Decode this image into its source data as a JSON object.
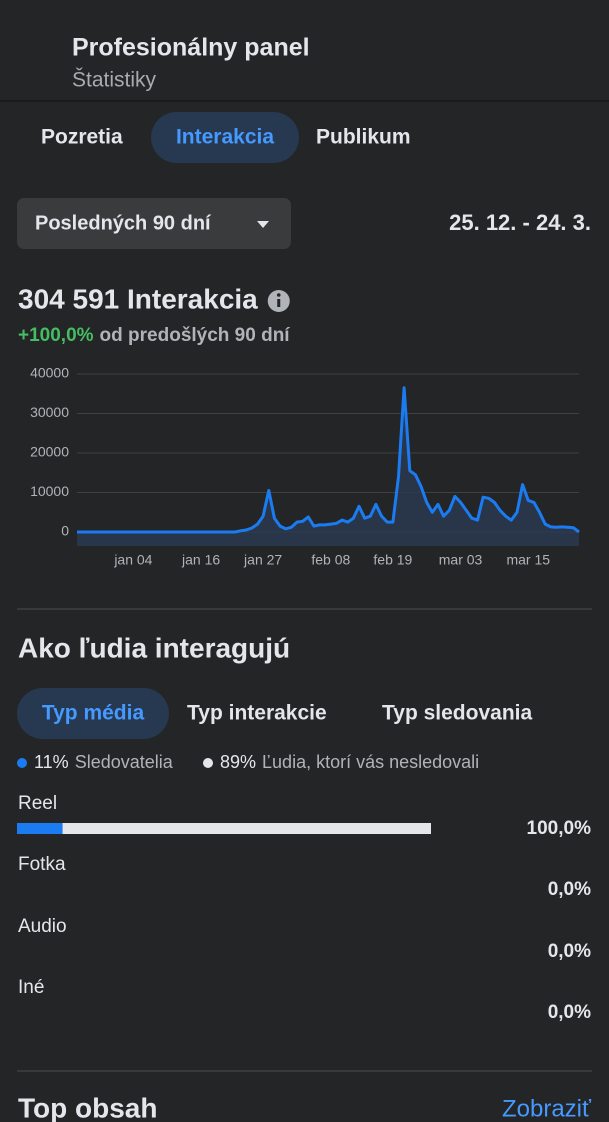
{
  "header": {
    "title": "Profesionálny panel",
    "subtitle": "Štatistiky"
  },
  "tabs": [
    "Pozretia",
    "Interakcia",
    "Publikum"
  ],
  "period": {
    "selector": "Posledných 90 dní",
    "range": "25. 12. - 24. 3."
  },
  "summary": {
    "total": "304 591 Interakcia",
    "change": "+100,0%",
    "change_note": "od predošlých 90 dní"
  },
  "chart_data": {
    "type": "line",
    "color": "#1b7cf2",
    "grid": true,
    "categories": [
      null,
      null,
      null,
      null,
      null,
      null,
      null,
      null,
      null,
      null,
      "jan 04",
      null,
      null,
      null,
      null,
      null,
      null,
      null,
      null,
      null,
      null,
      null,
      "jan 16",
      null,
      null,
      null,
      null,
      null,
      null,
      null,
      null,
      null,
      null,
      "jan 27",
      null,
      null,
      null,
      null,
      null,
      null,
      null,
      null,
      null,
      null,
      null,
      "feb 08",
      null,
      null,
      null,
      null,
      null,
      null,
      null,
      null,
      null,
      null,
      "feb 19",
      null,
      null,
      null,
      null,
      null,
      null,
      null,
      null,
      null,
      null,
      null,
      "mar 03",
      null,
      null,
      null,
      null,
      null,
      null,
      null,
      null,
      null,
      null,
      null,
      "mar 15",
      null,
      null,
      null,
      null,
      null,
      null,
      null,
      null,
      null
    ],
    "values": [
      0,
      0,
      0,
      0,
      0,
      0,
      0,
      0,
      0,
      0,
      0,
      0,
      0,
      0,
      0,
      0,
      0,
      0,
      0,
      0,
      0,
      0,
      0,
      0,
      0,
      0,
      0,
      0,
      0,
      300,
      500,
      1000,
      2000,
      4000,
      10500,
      3500,
      1500,
      800,
      1200,
      2500,
      2700,
      3800,
      1500,
      1800,
      1800,
      2000,
      2200,
      3000,
      2500,
      3500,
      6500,
      3500,
      4000,
      7000,
      4000,
      2500,
      2500,
      14000,
      36500,
      15500,
      14500,
      11500,
      7500,
      5000,
      7000,
      4000,
      5500,
      9000,
      7500,
      5500,
      3500,
      3000,
      8800,
      8500,
      7500,
      5500,
      4000,
      3000,
      5000,
      12000,
      8000,
      7500,
      5000,
      2000,
      1300,
      1200,
      1300,
      1200,
      1100,
      0
    ],
    "ylim": [
      0,
      40000
    ],
    "yticks": [
      0,
      10000,
      20000,
      30000,
      40000
    ]
  },
  "section": {
    "title": "Ako ľudia interagujú",
    "tabs": [
      "Typ média",
      "Typ interakcie",
      "Typ sledovania"
    ]
  },
  "breakdown": {
    "series": [
      {
        "name": "Sledovatelia",
        "color": "#1b7cf2",
        "value": 11,
        "value_label": "11%"
      },
      {
        "name": "Ľudia, ktorí vás nesledovali",
        "color": "#e4e6eb",
        "value": 89,
        "value_label": "89%"
      }
    ],
    "rows": [
      {
        "label": "Reel",
        "share": "100,0%",
        "segments": [
          11,
          89
        ]
      },
      {
        "label": "Fotka",
        "share": "0,0%"
      },
      {
        "label": "Audio",
        "share": "0,0%"
      },
      {
        "label": "Iné",
        "share": "0,0%"
      }
    ]
  },
  "footer": {
    "title": "Top obsah",
    "link": "Zobraziť"
  }
}
